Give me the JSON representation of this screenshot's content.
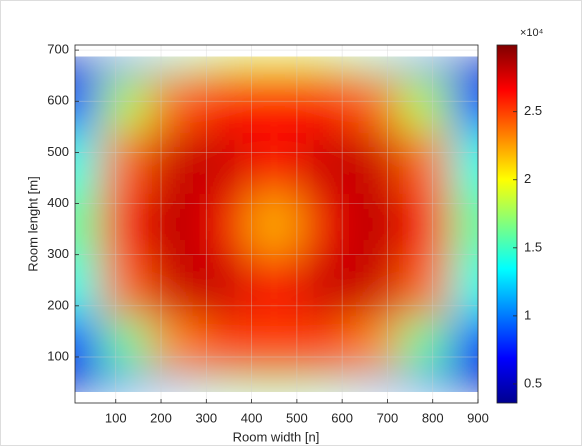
{
  "chart_data": {
    "type": "heatmap",
    "x_label": "Room width [n]",
    "y_label": "Room lenght [m]",
    "x": [
      10,
      120,
      230,
      340,
      450,
      560,
      670,
      780,
      900
    ],
    "y": [
      10,
      120,
      240,
      360,
      480,
      600,
      710
    ],
    "z": [
      [
        0.4,
        0.7,
        1.2,
        1.5,
        1.6,
        1.5,
        1.2,
        0.7,
        0.4
      ],
      [
        0.8,
        1.6,
        2.3,
        2.5,
        2.5,
        2.5,
        2.3,
        1.6,
        0.8
      ],
      [
        1.4,
        2.4,
        2.8,
        2.8,
        2.6,
        2.8,
        2.8,
        2.4,
        1.4
      ],
      [
        1.6,
        2.6,
        2.85,
        2.7,
        2.2,
        2.7,
        2.85,
        2.6,
        1.6
      ],
      [
        1.4,
        2.4,
        2.8,
        2.8,
        2.6,
        2.8,
        2.8,
        2.4,
        1.4
      ],
      [
        0.9,
        1.8,
        2.4,
        2.6,
        2.6,
        2.6,
        2.4,
        1.8,
        0.9
      ],
      [
        0.4,
        0.9,
        1.5,
        1.8,
        1.9,
        1.8,
        1.5,
        0.9,
        0.4
      ]
    ],
    "xlim": [
      10,
      900
    ],
    "ylim": [
      10,
      710
    ],
    "xticks": [
      100,
      200,
      300,
      400,
      500,
      600,
      700,
      800,
      900
    ],
    "yticks": [
      100,
      200,
      300,
      400,
      500,
      600,
      700
    ],
    "colormap": "jet",
    "clim": [
      0.36,
      2.99
    ],
    "cticks": [
      0.5,
      1,
      1.5,
      2,
      2.5
    ],
    "colorbar_exponent": "×10⁴",
    "grid": true
  }
}
